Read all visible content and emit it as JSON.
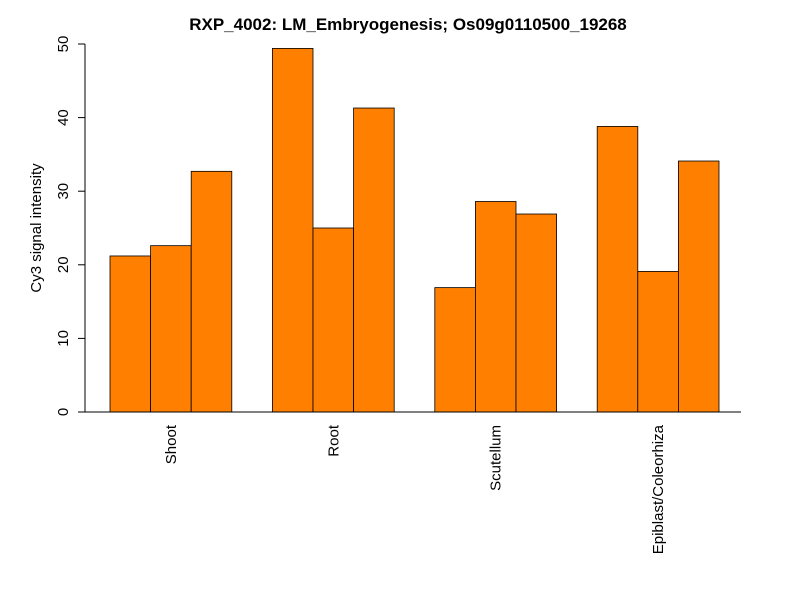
{
  "chart_data": {
    "type": "bar",
    "title": "RXP_4002: LM_Embryogenesis; Os09g0110500_19268",
    "ylabel": "Cy3 signal intensity",
    "xlabel": "",
    "ylim": [
      0,
      50
    ],
    "yticks": [
      0,
      10,
      20,
      30,
      40,
      50
    ],
    "bar_color": "#FF7F00",
    "groups": [
      {
        "label": "Shoot",
        "values": [
          21.2,
          22.6,
          32.7
        ]
      },
      {
        "label": "Root",
        "values": [
          49.4,
          25.0,
          41.3
        ]
      },
      {
        "label": "Scutellum",
        "values": [
          16.9,
          28.6,
          26.9
        ]
      },
      {
        "label": "Epiblast/Coleorhiza",
        "values": [
          38.8,
          19.1,
          34.1
        ]
      }
    ]
  }
}
